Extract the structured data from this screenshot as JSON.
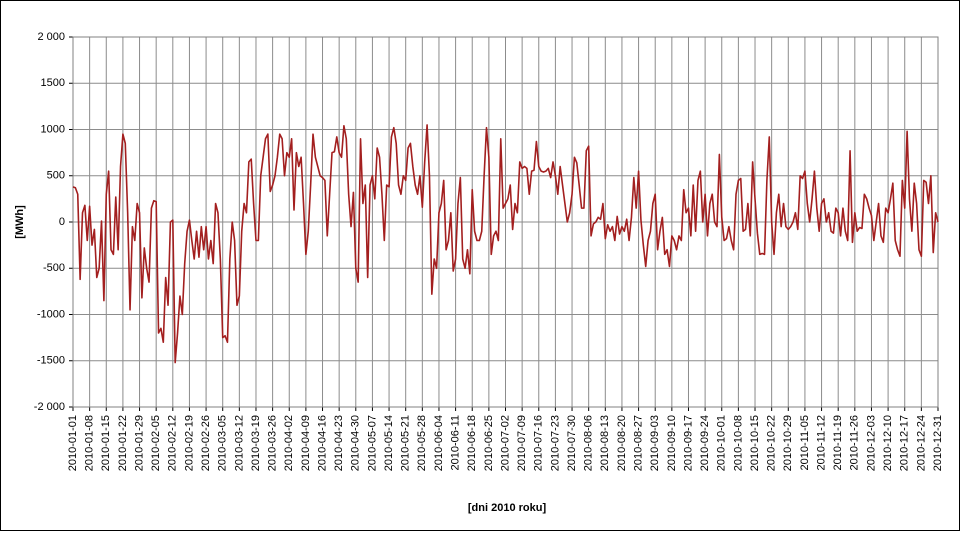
{
  "chart_data": {
    "type": "line",
    "y_label": "[MWh]",
    "x_label": "[dni 2010  roku]",
    "color": "#a31f1f",
    "grid": true,
    "ylim": [
      -2000,
      2000
    ],
    "yticks": [
      {
        "value": -2000,
        "label": "-2 000"
      },
      -1500,
      -1000,
      -500,
      0,
      500,
      1000,
      1500,
      {
        "value": 2000,
        "label": "2 000"
      }
    ],
    "categories": [
      "2010-01-01",
      null,
      null,
      null,
      null,
      null,
      null,
      "2010-01-08",
      null,
      null,
      null,
      null,
      null,
      null,
      "2010-01-15",
      null,
      null,
      null,
      null,
      null,
      null,
      "2010-01-22",
      null,
      null,
      null,
      null,
      null,
      null,
      "2010-01-29",
      null,
      null,
      null,
      null,
      null,
      null,
      "2010-02-05",
      null,
      null,
      null,
      null,
      null,
      null,
      "2010-02-12",
      null,
      null,
      null,
      null,
      null,
      null,
      "2010-02-19",
      null,
      null,
      null,
      null,
      null,
      null,
      "2010-02-26",
      null,
      null,
      null,
      null,
      null,
      null,
      "2010-03-05",
      null,
      null,
      null,
      null,
      null,
      null,
      "2010-03-12",
      null,
      null,
      null,
      null,
      null,
      null,
      "2010-03-19",
      null,
      null,
      null,
      null,
      null,
      null,
      "2010-03-26",
      null,
      null,
      null,
      null,
      null,
      null,
      "2010-04-02",
      null,
      null,
      null,
      null,
      null,
      null,
      "2010-04-09",
      null,
      null,
      null,
      null,
      null,
      null,
      "2010-04-16",
      null,
      null,
      null,
      null,
      null,
      null,
      "2010-04-23",
      null,
      null,
      null,
      null,
      null,
      null,
      "2010-04-30",
      null,
      null,
      null,
      null,
      null,
      null,
      "2010-05-07",
      null,
      null,
      null,
      null,
      null,
      null,
      "2010-05-14",
      null,
      null,
      null,
      null,
      null,
      null,
      "2010-05-21",
      null,
      null,
      null,
      null,
      null,
      null,
      "2010-05-28",
      null,
      null,
      null,
      null,
      null,
      null,
      "2010-06-04",
      null,
      null,
      null,
      null,
      null,
      null,
      "2010-06-11",
      null,
      null,
      null,
      null,
      null,
      null,
      "2010-06-18",
      null,
      null,
      null,
      null,
      null,
      null,
      "2010-06-25",
      null,
      null,
      null,
      null,
      null,
      null,
      "2010-07-02",
      null,
      null,
      null,
      null,
      null,
      null,
      "2010-07-09",
      null,
      null,
      null,
      null,
      null,
      null,
      "2010-07-16",
      null,
      null,
      null,
      null,
      null,
      null,
      "2010-07-23",
      null,
      null,
      null,
      null,
      null,
      null,
      "2010-07-30",
      null,
      null,
      null,
      null,
      null,
      null,
      "2010-08-06",
      null,
      null,
      null,
      null,
      null,
      null,
      "2010-08-13",
      null,
      null,
      null,
      null,
      null,
      null,
      "2010-08-20",
      null,
      null,
      null,
      null,
      null,
      null,
      "2010-08-27",
      null,
      null,
      null,
      null,
      null,
      null,
      "2010-09-03",
      null,
      null,
      null,
      null,
      null,
      null,
      "2010-09-10",
      null,
      null,
      null,
      null,
      null,
      null,
      "2010-09-17",
      null,
      null,
      null,
      null,
      null,
      null,
      "2010-09-24",
      null,
      null,
      null,
      null,
      null,
      null,
      "2010-10-01",
      null,
      null,
      null,
      null,
      null,
      null,
      "2010-10-08",
      null,
      null,
      null,
      null,
      null,
      null,
      "2010-10-15",
      null,
      null,
      null,
      null,
      null,
      null,
      "2010-10-22",
      null,
      null,
      null,
      null,
      null,
      null,
      "2010-10-29",
      null,
      null,
      null,
      null,
      null,
      null,
      "2010-11-05",
      null,
      null,
      null,
      null,
      null,
      null,
      "2010-11-12",
      null,
      null,
      null,
      null,
      null,
      null,
      "2010-11-19",
      null,
      null,
      null,
      null,
      null,
      null,
      "2010-11-26",
      null,
      null,
      null,
      null,
      null,
      null,
      "2010-12-03",
      null,
      null,
      null,
      null,
      null,
      null,
      "2010-12-10",
      null,
      null,
      null,
      null,
      null,
      null,
      "2010-12-17",
      null,
      null,
      null,
      null,
      null,
      null,
      "2010-12-24",
      null,
      null,
      null,
      null,
      null,
      null,
      "2010-12-31"
    ],
    "values": [
      380,
      370,
      300,
      -620,
      100,
      180,
      -200,
      170,
      -250,
      -80,
      -600,
      -500,
      10,
      -850,
      300,
      550,
      -300,
      -350,
      270,
      -300,
      600,
      950,
      850,
      100,
      -950,
      -50,
      -200,
      200,
      100,
      -820,
      -280,
      -500,
      -650,
      150,
      230,
      220,
      -1200,
      -1150,
      -1300,
      -600,
      -900,
      0,
      20,
      -1520,
      -1200,
      -800,
      -1000,
      -450,
      -100,
      20,
      -200,
      -400,
      -100,
      -380,
      -50,
      -300,
      -50,
      -400,
      -200,
      -450,
      200,
      100,
      -400,
      -1250,
      -1230,
      -1300,
      -400,
      0,
      -200,
      -900,
      -800,
      -100,
      200,
      100,
      650,
      680,
      200,
      -200,
      -200,
      500,
      700,
      900,
      950,
      330,
      400,
      500,
      700,
      950,
      900,
      500,
      750,
      700,
      900,
      130,
      750,
      600,
      700,
      200,
      -350,
      -100,
      400,
      950,
      700,
      600,
      500,
      480,
      450,
      -150,
      300,
      750,
      760,
      920,
      750,
      700,
      1040,
      900,
      300,
      -50,
      320,
      -500,
      -650,
      900,
      200,
      400,
      -600,
      400,
      500,
      250,
      800,
      700,
      300,
      -200,
      400,
      380,
      920,
      1020,
      850,
      400,
      300,
      500,
      450,
      800,
      850,
      600,
      400,
      300,
      500,
      160,
      650,
      1050,
      500,
      -780,
      -400,
      -500,
      100,
      200,
      450,
      -300,
      -200,
      100,
      -530,
      -400,
      200,
      480,
      -400,
      -500,
      -300,
      -560,
      350,
      -100,
      -200,
      -200,
      -100,
      500,
      1020,
      700,
      -350,
      -150,
      -100,
      -200,
      900,
      150,
      200,
      250,
      400,
      -80,
      200,
      100,
      650,
      580,
      600,
      580,
      300,
      550,
      560,
      870,
      600,
      550,
      540,
      550,
      580,
      480,
      650,
      500,
      300,
      600,
      400,
      200,
      0,
      100,
      300,
      700,
      640,
      400,
      150,
      150,
      770,
      820,
      -150,
      -20,
      0,
      50,
      30,
      200,
      -180,
      -30,
      -100,
      -50,
      -200,
      60,
      -130,
      -50,
      -100,
      30,
      -200,
      50,
      480,
      150,
      550,
      20,
      -250,
      -480,
      -200,
      -100,
      200,
      300,
      -300,
      -100,
      50,
      -350,
      -300,
      -480,
      -150,
      -200,
      -300,
      -150,
      -200,
      350,
      100,
      150,
      -150,
      400,
      -100,
      450,
      550,
      0,
      300,
      -150,
      200,
      300,
      0,
      -50,
      730,
      50,
      -200,
      -180,
      -50,
      -200,
      -300,
      300,
      450,
      470,
      -100,
      -80,
      200,
      -150,
      650,
      250,
      -120,
      -350,
      -340,
      -350,
      450,
      920,
      0,
      -350,
      100,
      300,
      -50,
      200,
      -50,
      -80,
      -50,
      0,
      100,
      -80,
      500,
      470,
      550,
      200,
      0,
      250,
      550,
      150,
      -100,
      200,
      250,
      0,
      100,
      -100,
      -120,
      150,
      100,
      -150,
      150,
      -100,
      -200,
      770,
      -220,
      100,
      -100,
      -60,
      -70,
      300,
      250,
      150,
      70,
      -200,
      0,
      200,
      -150,
      -220,
      150,
      100,
      250,
      420,
      -200,
      -300,
      -370,
      450,
      150,
      980,
      250,
      -100,
      420,
      200,
      -300,
      -370,
      450,
      430,
      200,
      500,
      -330,
      100,
      0
    ]
  }
}
